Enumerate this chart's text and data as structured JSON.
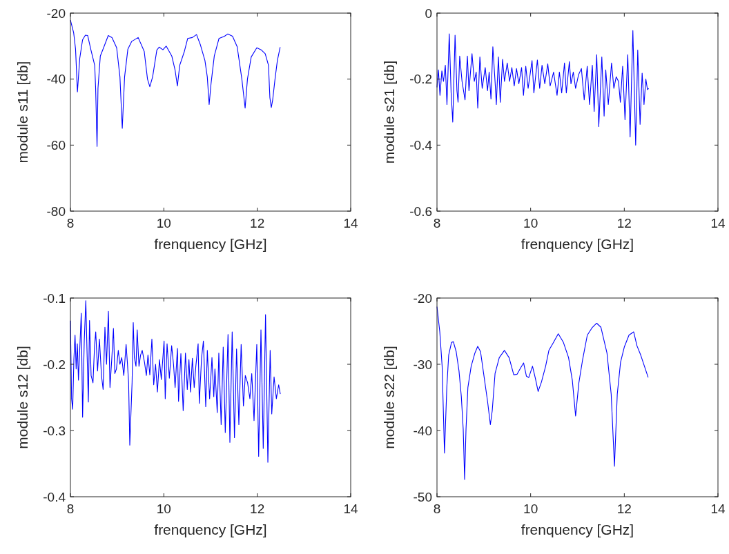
{
  "chart_data": [
    {
      "type": "line",
      "xlabel": "frenquency [GHz]",
      "ylabel": "module s11 [db]",
      "xlim": [
        8,
        14
      ],
      "ylim": [
        -80,
        -20
      ],
      "xticks": [
        8,
        10,
        12,
        14
      ],
      "yticks": [
        -80,
        -60,
        -40,
        -20
      ],
      "series": [
        {
          "color": "#0000ff",
          "x": [
            8.0,
            8.07,
            8.11,
            8.15,
            8.2,
            8.26,
            8.32,
            8.37,
            8.44,
            8.52,
            8.54,
            8.57,
            8.59,
            8.64,
            8.71,
            8.81,
            8.89,
            8.99,
            9.06,
            9.11,
            9.16,
            9.23,
            9.31,
            9.45,
            9.58,
            9.65,
            9.7,
            9.76,
            9.85,
            9.9,
            9.98,
            10.05,
            10.17,
            10.24,
            10.29,
            10.34,
            10.44,
            10.51,
            10.61,
            10.7,
            10.78,
            10.88,
            10.93,
            10.97,
            11.01,
            11.08,
            11.18,
            11.3,
            11.37,
            11.47,
            11.57,
            11.67,
            11.74,
            11.79,
            11.87,
            11.99,
            12.09,
            12.17,
            12.24,
            12.27,
            12.3,
            12.33,
            12.38,
            12.43,
            12.49
          ],
          "values": [
            -22.1,
            -26,
            -30.9,
            -43.9,
            -33.7,
            -28.1,
            -26.7,
            -26.8,
            -31.2,
            -35.8,
            -42.8,
            -60.4,
            -42.8,
            -33,
            -30.5,
            -26.8,
            -27.4,
            -30.5,
            -39.3,
            -54.9,
            -39.3,
            -30.9,
            -28.6,
            -27.4,
            -31.6,
            -40,
            -42.3,
            -39.3,
            -31.2,
            -30.3,
            -31.1,
            -30,
            -33,
            -37.2,
            -42.1,
            -35.8,
            -31.6,
            -27.7,
            -27.4,
            -26.5,
            -29.5,
            -34.4,
            -39.3,
            -47.7,
            -41.4,
            -33,
            -27.7,
            -27,
            -26.3,
            -27,
            -30.2,
            -40,
            -48.8,
            -40,
            -33.3,
            -30.5,
            -31.2,
            -32.3,
            -35.8,
            -45.6,
            -48.6,
            -46.3,
            -40,
            -34.4,
            -30.3
          ]
        }
      ]
    },
    {
      "type": "line",
      "xlabel": "frenquency [GHz]",
      "ylabel": "module s21 [db]",
      "xlim": [
        8,
        14
      ],
      "ylim": [
        -0.6,
        0
      ],
      "xticks": [
        8,
        10,
        12,
        14
      ],
      "yticks": [
        -0.6,
        -0.4,
        -0.2,
        0
      ],
      "series": [
        {
          "color": "#0000ff",
          "x": [
            8.0,
            8.03,
            8.064,
            8.104,
            8.139,
            8.178,
            8.213,
            8.262,
            8.302,
            8.337,
            8.386,
            8.426,
            8.45,
            8.485,
            8.535,
            8.599,
            8.649,
            8.683,
            8.748,
            8.797,
            8.837,
            8.871,
            8.916,
            8.965,
            9.03,
            9.079,
            9.114,
            9.153,
            9.193,
            9.243,
            9.267,
            9.312,
            9.351,
            9.401,
            9.441,
            9.5,
            9.55,
            9.599,
            9.649,
            9.698,
            9.748,
            9.807,
            9.847,
            9.896,
            9.946,
            10.03,
            10.069,
            10.144,
            10.193,
            10.243,
            10.302,
            10.366,
            10.416,
            10.49,
            10.564,
            10.614,
            10.663,
            10.723,
            10.762,
            10.827,
            10.861,
            10.911,
            10.96,
            11.025,
            11.084,
            11.144,
            11.208,
            11.257,
            11.317,
            11.356,
            11.411,
            11.455,
            11.52,
            11.569,
            11.604,
            11.658,
            11.728,
            11.777,
            11.827,
            11.876,
            11.916,
            11.965,
            12.015,
            12.074,
            12.124,
            12.183,
            12.243,
            12.287,
            12.337,
            12.381,
            12.421,
            12.46,
            12.495,
            12.52
          ],
          "values": [
            -0.225,
            -0.172,
            -0.249,
            -0.175,
            -0.207,
            -0.158,
            -0.277,
            -0.063,
            -0.242,
            -0.33,
            -0.067,
            -0.235,
            -0.27,
            -0.13,
            -0.207,
            -0.263,
            -0.13,
            -0.235,
            -0.123,
            -0.207,
            -0.179,
            -0.288,
            -0.133,
            -0.228,
            -0.165,
            -0.235,
            -0.179,
            -0.26,
            -0.102,
            -0.214,
            -0.277,
            -0.133,
            -0.27,
            -0.14,
            -0.207,
            -0.151,
            -0.207,
            -0.165,
            -0.221,
            -0.168,
            -0.214,
            -0.165,
            -0.249,
            -0.161,
            -0.228,
            -0.144,
            -0.242,
            -0.142,
            -0.228,
            -0.158,
            -0.214,
            -0.154,
            -0.221,
            -0.179,
            -0.249,
            -0.179,
            -0.242,
            -0.151,
            -0.242,
            -0.147,
            -0.214,
            -0.179,
            -0.228,
            -0.186,
            -0.168,
            -0.263,
            -0.161,
            -0.277,
            -0.158,
            -0.298,
            -0.126,
            -0.344,
            -0.133,
            -0.312,
            -0.172,
            -0.277,
            -0.151,
            -0.228,
            -0.193,
            -0.207,
            -0.27,
            -0.161,
            -0.323,
            -0.126,
            -0.375,
            -0.053,
            -0.4,
            -0.112,
            -0.337,
            -0.182,
            -0.277,
            -0.2,
            -0.232,
            -0.228
          ]
        }
      ]
    },
    {
      "type": "line",
      "xlabel": "frenquency [GHz]",
      "ylabel": "module s12 [db]",
      "xlim": [
        8,
        14
      ],
      "ylim": [
        -0.4,
        -0.1
      ],
      "xticks": [
        8,
        10,
        12,
        14
      ],
      "yticks": [
        -0.4,
        -0.3,
        -0.2,
        -0.1
      ],
      "series": [
        {
          "color": "#0000ff",
          "x": [
            8.0,
            8.025,
            8.049,
            8.074,
            8.099,
            8.123,
            8.148,
            8.172,
            8.207,
            8.232,
            8.261,
            8.296,
            8.33,
            8.355,
            8.384,
            8.409,
            8.443,
            8.483,
            8.517,
            8.542,
            8.581,
            8.621,
            8.665,
            8.7,
            8.739,
            8.773,
            8.813,
            8.847,
            8.887,
            8.921,
            8.951,
            8.985,
            9.025,
            9.059,
            9.099,
            9.143,
            9.192,
            9.222,
            9.246,
            9.271,
            9.3,
            9.32,
            9.345,
            9.369,
            9.404,
            9.429,
            9.468,
            9.502,
            9.537,
            9.586,
            9.626,
            9.66,
            9.7,
            9.744,
            9.783,
            9.823,
            9.862,
            9.906,
            9.946,
            10.005,
            10.03,
            10.069,
            10.118,
            10.167,
            10.207,
            10.241,
            10.291,
            10.315,
            10.365,
            10.414,
            10.463,
            10.502,
            10.537,
            10.571,
            10.611,
            10.65,
            10.685,
            10.734,
            10.759,
            10.808,
            10.847,
            10.897,
            10.931,
            10.98,
            11.03,
            11.069,
            11.094,
            11.143,
            11.177,
            11.227,
            11.271,
            11.315,
            11.374,
            11.414,
            11.463,
            11.512,
            11.557,
            11.606,
            11.655,
            11.704,
            11.744,
            11.793,
            11.842,
            11.882,
            11.931,
            11.99,
            12.03,
            12.079,
            12.128,
            12.177,
            12.227,
            12.276,
            12.31,
            12.36,
            12.409,
            12.458,
            12.493
          ],
          "values": [
            -0.134,
            -0.252,
            -0.268,
            -0.193,
            -0.156,
            -0.207,
            -0.169,
            -0.224,
            -0.165,
            -0.123,
            -0.28,
            -0.165,
            -0.104,
            -0.179,
            -0.257,
            -0.134,
            -0.217,
            -0.228,
            -0.172,
            -0.151,
            -0.21,
            -0.162,
            -0.217,
            -0.238,
            -0.144,
            -0.2,
            -0.12,
            -0.235,
            -0.19,
            -0.146,
            -0.214,
            -0.207,
            -0.179,
            -0.2,
            -0.19,
            -0.217,
            -0.17,
            -0.2,
            -0.228,
            -0.322,
            -0.266,
            -0.228,
            -0.137,
            -0.19,
            -0.203,
            -0.148,
            -0.203,
            -0.186,
            -0.179,
            -0.197,
            -0.217,
            -0.186,
            -0.216,
            -0.162,
            -0.231,
            -0.2,
            -0.242,
            -0.193,
            -0.223,
            -0.165,
            -0.252,
            -0.169,
            -0.221,
            -0.172,
            -0.2,
            -0.235,
            -0.176,
            -0.256,
            -0.184,
            -0.27,
            -0.183,
            -0.238,
            -0.193,
            -0.242,
            -0.191,
            -0.235,
            -0.203,
            -0.169,
            -0.259,
            -0.19,
            -0.165,
            -0.264,
            -0.179,
            -0.252,
            -0.19,
            -0.249,
            -0.207,
            -0.273,
            -0.183,
            -0.291,
            -0.174,
            -0.303,
            -0.155,
            -0.318,
            -0.151,
            -0.311,
            -0.177,
            -0.291,
            -0.17,
            -0.263,
            -0.217,
            -0.228,
            -0.252,
            -0.214,
            -0.285,
            -0.17,
            -0.339,
            -0.148,
            -0.327,
            -0.125,
            -0.348,
            -0.179,
            -0.275,
            -0.219,
            -0.252,
            -0.231,
            -0.245
          ]
        }
      ]
    },
    {
      "type": "line",
      "xlabel": "frenquency [GHz]",
      "ylabel": "module s22 [db]",
      "xlim": [
        8,
        14
      ],
      "ylim": [
        -50,
        -20
      ],
      "xticks": [
        8,
        10,
        12,
        14
      ],
      "yticks": [
        -50,
        -40,
        -30,
        -20
      ],
      "series": [
        {
          "color": "#0000ff",
          "x": [
            8.0,
            8.06,
            8.11,
            8.16,
            8.21,
            8.25,
            8.31,
            8.35,
            8.41,
            8.47,
            8.52,
            8.56,
            8.59,
            8.62,
            8.66,
            8.73,
            8.81,
            8.87,
            8.93,
            9.01,
            9.08,
            9.14,
            9.18,
            9.24,
            9.33,
            9.44,
            9.54,
            9.64,
            9.71,
            9.79,
            9.85,
            9.91,
            9.96,
            10.04,
            10.1,
            10.16,
            10.23,
            10.32,
            10.39,
            10.48,
            10.59,
            10.7,
            10.81,
            10.89,
            10.96,
            11.03,
            11.11,
            11.21,
            11.31,
            11.41,
            11.5,
            11.63,
            11.72,
            11.79,
            11.85,
            11.92,
            12.0,
            12.1,
            12.2,
            12.27,
            12.35,
            12.43,
            12.51
          ],
          "values": [
            -21.3,
            -25.1,
            -30.3,
            -43.4,
            -33.5,
            -28.6,
            -26.7,
            -26.6,
            -28.1,
            -31,
            -34.9,
            -39.8,
            -47.4,
            -39.8,
            -33.5,
            -30.3,
            -28.3,
            -27.3,
            -28.1,
            -32.1,
            -35.6,
            -39.1,
            -37,
            -31.4,
            -29,
            -27.9,
            -29,
            -31.6,
            -31.5,
            -30.5,
            -29.8,
            -31.8,
            -32,
            -30.3,
            -32.1,
            -34.1,
            -32.7,
            -30.3,
            -27.9,
            -26.8,
            -25.4,
            -26.7,
            -29,
            -32.4,
            -37.8,
            -32.8,
            -29.3,
            -25.6,
            -24.5,
            -23.8,
            -24.4,
            -28.3,
            -34.5,
            -45.4,
            -34.5,
            -29.7,
            -27.4,
            -25.6,
            -25.1,
            -27.2,
            -28.6,
            -30.3,
            -32
          ]
        }
      ]
    }
  ]
}
